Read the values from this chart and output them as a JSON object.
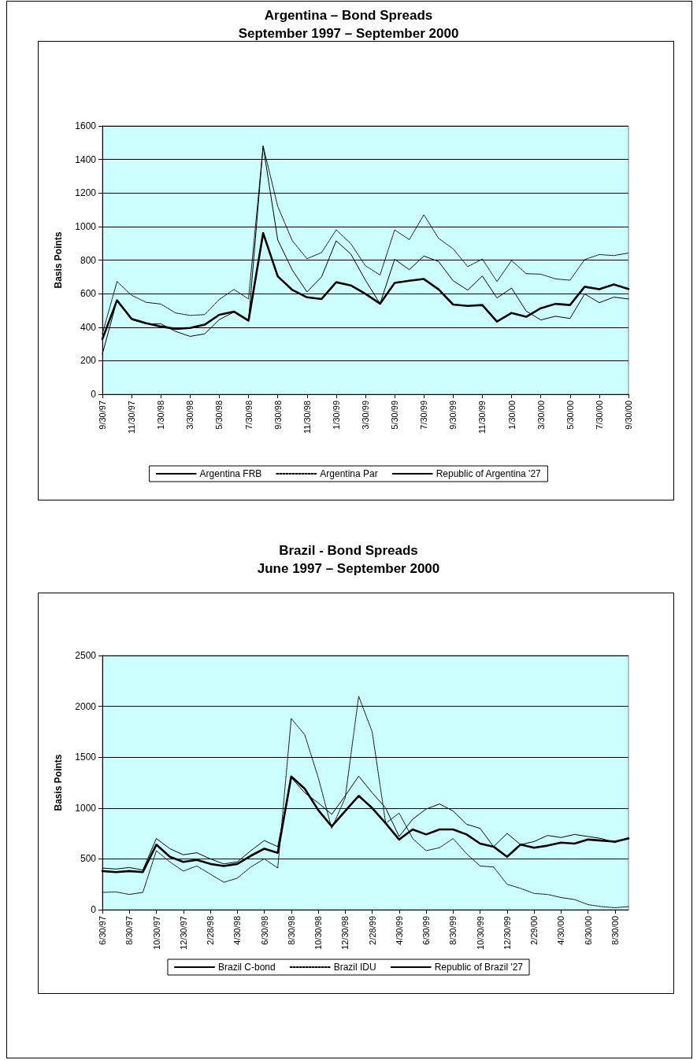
{
  "chart_data": [
    {
      "type": "line",
      "title": "Argentina – Bond Spreads",
      "subtitle": "September 1997 – September 2000",
      "ylabel": "Basis Points",
      "categories": [
        "9/30/97",
        null,
        "11/30/97",
        null,
        "1/30/98",
        null,
        "3/30/98",
        null,
        "5/30/98",
        null,
        "7/30/98",
        null,
        "9/30/98",
        null,
        "11/30/98",
        null,
        "1/30/99",
        null,
        "3/30/99",
        null,
        "5/30/99",
        null,
        "7/30/99",
        null,
        "9/30/99",
        null,
        "11/30/99",
        null,
        "1/30/00",
        null,
        "3/30/00",
        null,
        "5/30/00",
        null,
        "7/30/00",
        null,
        "9/30/00"
      ],
      "series": [
        {
          "name": "Argentina FRB",
          "color": "#000000",
          "line_style": "solid",
          "values": [
            240,
            560,
            445,
            420,
            420,
            375,
            345,
            360,
            445,
            490,
            435,
            1480,
            920,
            740,
            610,
            700,
            915,
            836,
            680,
            540,
            805,
            743,
            824,
            792,
            677,
            621,
            705,
            574,
            633,
            496,
            443,
            465,
            452,
            598,
            546,
            579,
            568
          ]
        },
        {
          "name": "Argentina Par",
          "color": "#000000",
          "line_style": "dotted",
          "values": [
            360,
            672,
            590,
            548,
            538,
            485,
            470,
            475,
            565,
            625,
            568,
            1480,
            1120,
            915,
            808,
            845,
            980,
            898,
            766,
            711,
            980,
            922,
            1070,
            930,
            867,
            761,
            806,
            672,
            797,
            719,
            716,
            688,
            680,
            803,
            833,
            827,
            842
          ]
        },
        {
          "name": "Republic of Argentina '27",
          "color": "#000000",
          "line_style": "solid",
          "values": [
            329,
            560,
            449,
            423,
            404,
            390,
            395,
            415,
            474,
            493,
            439,
            961,
            703,
            622,
            578,
            568,
            668,
            649,
            599,
            540,
            664,
            677,
            687,
            626,
            535,
            527,
            532,
            433,
            485,
            462,
            513,
            539,
            532,
            641,
            626,
            655,
            628
          ]
        }
      ],
      "ylim": [
        0,
        1600
      ],
      "yticks": [
        0,
        200,
        400,
        600,
        800,
        1000,
        1200,
        1400,
        1600
      ],
      "grid": "y",
      "legend": "bottom"
    },
    {
      "type": "line",
      "title": "Brazil - Bond Spreads",
      "subtitle": "June 1997 – September 2000",
      "ylabel": "Basis Points",
      "categories": [
        "6/30/97",
        null,
        "8/30/97",
        null,
        "10/30/97",
        null,
        "12/30/97",
        null,
        "2/28/98",
        null,
        "4/30/98",
        null,
        "6/30/98",
        null,
        "8/30/98",
        null,
        "10/30/98",
        null,
        "12/30/98",
        null,
        "2/28/99",
        null,
        "4/30/99",
        null,
        "6/30/99",
        null,
        "8/30/99",
        null,
        "10/30/99",
        null,
        "12/30/99",
        null,
        "2/29/00",
        null,
        "4/30/00",
        null,
        "6/30/00",
        null,
        "8/30/00",
        null
      ],
      "series": [
        {
          "name": "Brazil C-bond",
          "color": "#000000",
          "line_style": "solid",
          "values": [
            410,
            400,
            415,
            390,
            700,
            600,
            540,
            560,
            500,
            450,
            470,
            580,
            680,
            620,
            1300,
            1150,
            1050,
            938,
            1120,
            1314,
            1150,
            1000,
            720,
            890,
            990,
            1040,
            970,
            840,
            800,
            620,
            750,
            640,
            670,
            730,
            710,
            740,
            720,
            700,
            660,
            710
          ]
        },
        {
          "name": "Brazil IDU",
          "color": "#000000",
          "line_style": "dotted",
          "values": [
            170,
            175,
            150,
            170,
            580,
            470,
            380,
            430,
            350,
            270,
            310,
            420,
            500,
            410,
            1880,
            1721,
            1300,
            800,
            1100,
            2100,
            1750,
            850,
            950,
            700,
            580,
            610,
            700,
            550,
            430,
            420,
            250,
            210,
            160,
            150,
            120,
            100,
            50,
            30,
            20,
            30
          ]
        },
        {
          "name": "Republic of Brazil '27",
          "color": "#000000",
          "line_style": "solid",
          "values": [
            380,
            370,
            380,
            370,
            640,
            520,
            470,
            490,
            450,
            430,
            450,
            530,
            600,
            560,
            1310,
            1190,
            980,
            820,
            970,
            1120,
            1000,
            850,
            690,
            790,
            740,
            790,
            790,
            740,
            650,
            620,
            520,
            640,
            610,
            630,
            660,
            650,
            690,
            680,
            670,
            700
          ]
        }
      ],
      "ylim": [
        0,
        2500
      ],
      "yticks": [
        0,
        500,
        1000,
        1500,
        2000,
        2500
      ],
      "grid": "y",
      "legend": "bottom"
    }
  ]
}
